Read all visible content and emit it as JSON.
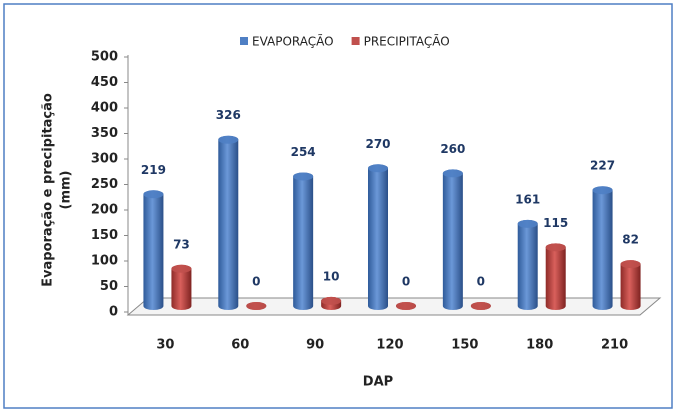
{
  "chart_data": {
    "type": "bar",
    "ylabel": [
      "Evaporação e precipitação",
      "(mm)"
    ],
    "xlabel": "DAP",
    "categories": [
      "30",
      "60",
      "90",
      "120",
      "150",
      "180",
      "210"
    ],
    "series": [
      {
        "name": "EVAPORAÇÃO",
        "color": "#4f7fc4",
        "values": [
          219,
          326,
          254,
          270,
          260,
          161,
          227
        ]
      },
      {
        "name": "PRECIPITAÇÃO",
        "color": "#c0504d",
        "values": [
          73,
          0,
          10,
          0,
          0,
          115,
          82
        ]
      }
    ],
    "ylim": [
      0,
      500
    ],
    "yticks": [
      0,
      50,
      100,
      150,
      200,
      250,
      300,
      350,
      400,
      450,
      500
    ],
    "grid": false,
    "legend": "top"
  }
}
